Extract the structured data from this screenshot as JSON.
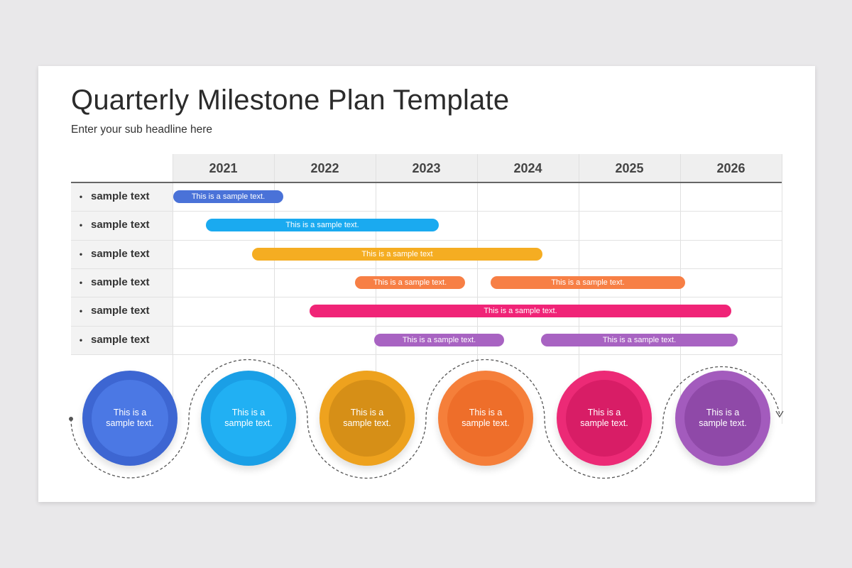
{
  "title": "Quarterly Milestone Plan Template",
  "subtitle": "Enter your sub headline here",
  "years": [
    "2021",
    "2022",
    "2023",
    "2024",
    "2025",
    "2026"
  ],
  "rows": [
    {
      "label": "sample text",
      "bullet": "•"
    },
    {
      "label": "sample text",
      "bullet": "•"
    },
    {
      "label": "sample text",
      "bullet": "•"
    },
    {
      "label": "sample text",
      "bullet": "•"
    },
    {
      "label": "sample text",
      "bullet": "•"
    },
    {
      "label": "sample text",
      "bullet": "•"
    }
  ],
  "bars": [
    {
      "row": 0,
      "text": "This is a sample text.",
      "color": "#4a72d8"
    },
    {
      "row": 1,
      "text": "This is a sample text.",
      "color": "#1aaaf0"
    },
    {
      "row": 2,
      "text": "This is a sample text",
      "color": "#f5ad22"
    },
    {
      "row": 3,
      "text": "This is a sample text.",
      "color": "#f77f45"
    },
    {
      "row": 3,
      "text": "This is a sample text.",
      "color": "#f77f45"
    },
    {
      "row": 4,
      "text": "This is a sample text.",
      "color": "#f02477"
    },
    {
      "row": 5,
      "text": "This is a sample text.",
      "color": "#a863c2"
    },
    {
      "row": 5,
      "text": "This is a sample text.",
      "color": "#a863c2"
    }
  ],
  "circles": [
    {
      "text": "This is a sample text.",
      "outer": "#3d66d2",
      "inner": "#4b78e4"
    },
    {
      "text": "This is a sample text.",
      "outer": "#1a9fe6",
      "inner": "#21b0f3"
    },
    {
      "text": "This is a sample text.",
      "outer": "#eea21e",
      "inner": "#d68f17"
    },
    {
      "text": "This is a sample text.",
      "outer": "#f57f3a",
      "inner": "#ee6e2a"
    },
    {
      "text": "This is a sample text.",
      "outer": "#ec2a76",
      "inner": "#d81d66"
    },
    {
      "text": "This is a sample text.",
      "outer": "#a35bbd",
      "inner": "#8f49a8"
    }
  ]
}
